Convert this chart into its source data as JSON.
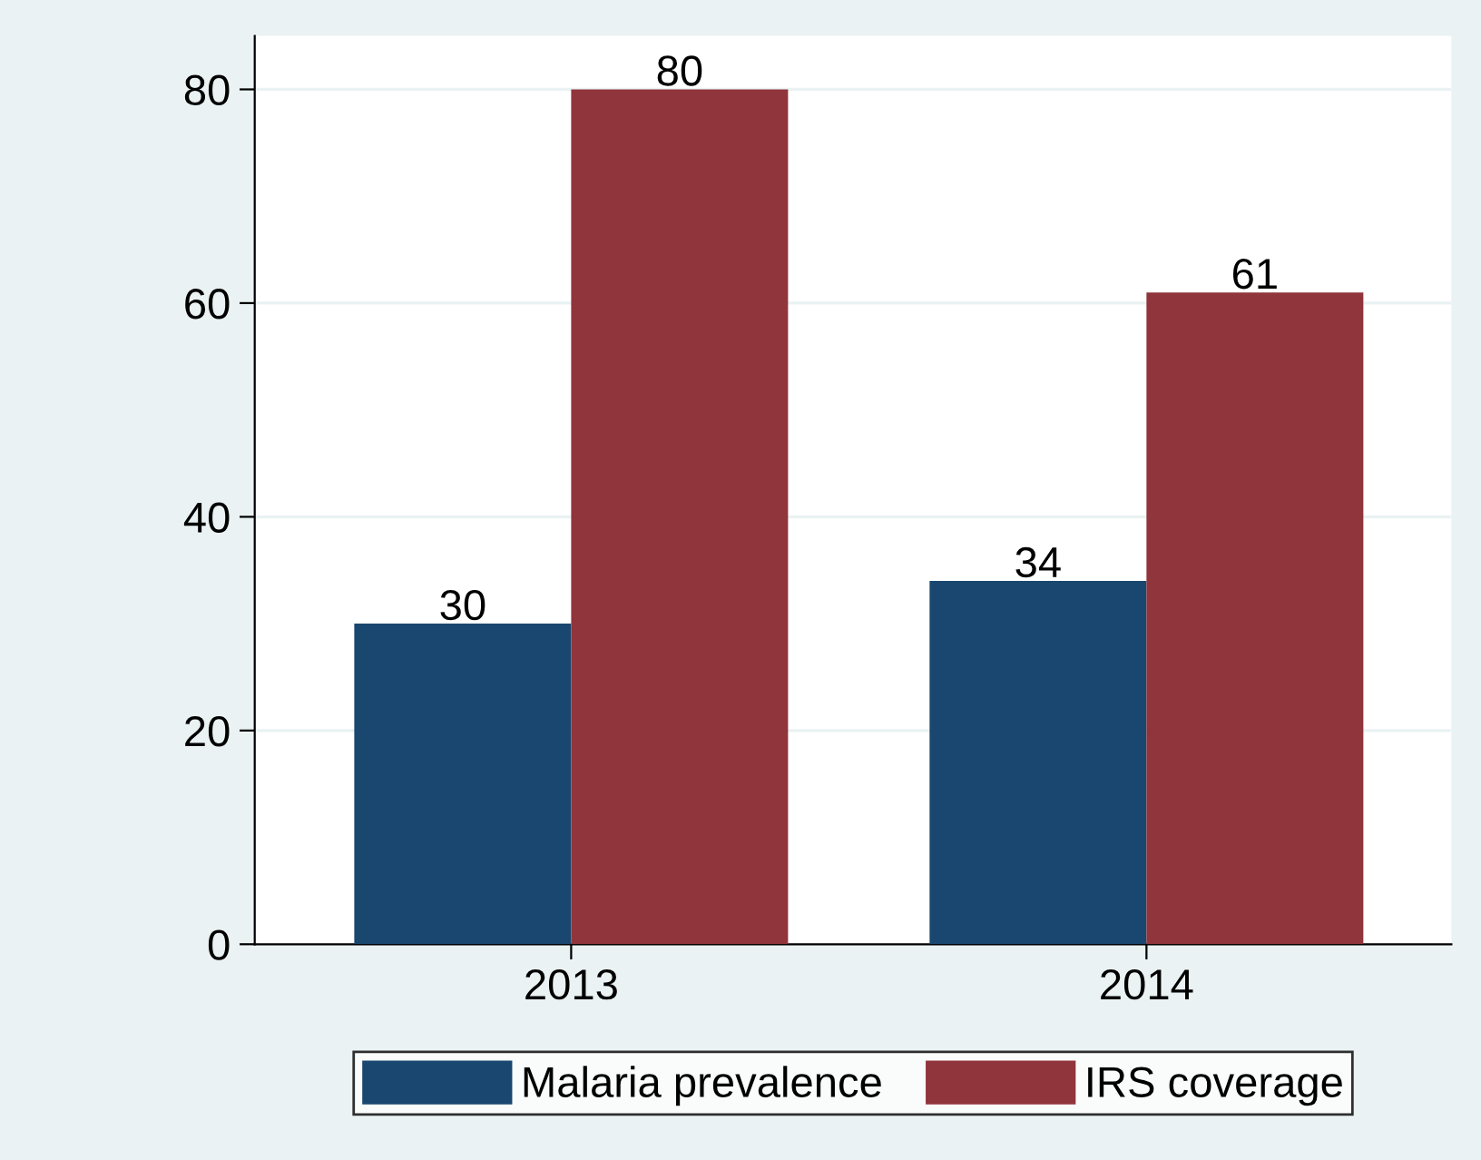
{
  "chart_data": {
    "type": "bar",
    "categories": [
      "2013",
      "2014"
    ],
    "series": [
      {
        "name": "Malaria prevalence",
        "color": "#1a476f",
        "values": [
          30,
          34
        ]
      },
      {
        "name": "IRS coverage",
        "color": "#90353b",
        "values": [
          80,
          61
        ]
      }
    ],
    "ylim": [
      0,
      85
    ],
    "yticks": [
      0,
      20,
      40,
      60,
      80
    ],
    "grid": "y",
    "legend": "bottom",
    "data_labels": true
  }
}
